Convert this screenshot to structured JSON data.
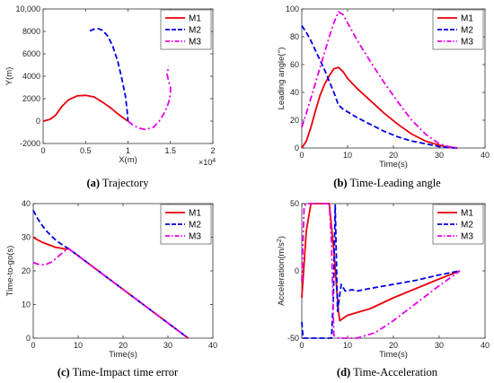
{
  "chart_data": [
    {
      "type": "line",
      "caption_letter": "(a)",
      "caption_text": " Trajectory",
      "xlabel": "X(m)",
      "ylabel": "Y(m)",
      "x_multiplier": "×10",
      "x_multiplier_exp": "4",
      "xlim": [
        0,
        2
      ],
      "ylim": [
        -2000,
        10000
      ],
      "xticks": [
        0,
        0.5,
        1,
        1.5,
        2
      ],
      "xtick_labels": [
        "0",
        "0.5",
        "1",
        "1.5",
        "2"
      ],
      "yticks": [
        -2000,
        0,
        2000,
        4000,
        6000,
        8000,
        10000
      ],
      "ytick_labels": [
        "-2000",
        "0",
        "2000",
        "4000",
        "6000",
        "8000",
        "10,000"
      ],
      "legend": "top-right",
      "series": [
        {
          "name": "M1",
          "color": "#e8000b",
          "dash": "solid",
          "x": [
            0,
            0.08,
            0.15,
            0.22,
            0.3,
            0.4,
            0.5,
            0.6,
            0.7,
            0.8,
            0.88,
            0.95,
            1.0
          ],
          "y": [
            0,
            150,
            550,
            1300,
            1900,
            2250,
            2300,
            2150,
            1700,
            1150,
            650,
            250,
            0
          ]
        },
        {
          "name": "M2",
          "color": "#0000e6",
          "dash": "dashed",
          "x": [
            0.55,
            0.6,
            0.65,
            0.7,
            0.76,
            0.82,
            0.88,
            0.93,
            0.97,
            0.99,
            1.0
          ],
          "y": [
            8050,
            8200,
            8250,
            8100,
            7600,
            6700,
            5300,
            3700,
            2200,
            900,
            0
          ]
        },
        {
          "name": "M3",
          "color": "#e600e6",
          "dash": "dashdot",
          "x": [
            1.0,
            1.05,
            1.12,
            1.2,
            1.3,
            1.38,
            1.44,
            1.48,
            1.5,
            1.5,
            1.48,
            1.46,
            1.48
          ],
          "y": [
            0,
            -300,
            -600,
            -750,
            -550,
            100,
            900,
            1700,
            2400,
            3000,
            3500,
            4200,
            4900
          ]
        }
      ]
    },
    {
      "type": "line",
      "caption_letter": "(b)",
      "caption_text": " Time-Leading angle",
      "xlabel": "Time(s)",
      "ylabel": "Leading angle(°)",
      "xlim": [
        0,
        40
      ],
      "ylim": [
        0,
        100
      ],
      "xticks": [
        0,
        10,
        20,
        30,
        40
      ],
      "xtick_labels": [
        "0",
        "10",
        "20",
        "30",
        "40"
      ],
      "yticks": [
        0,
        20,
        40,
        60,
        80,
        100
      ],
      "ytick_labels": [
        "0",
        "20",
        "40",
        "60",
        "80",
        "100"
      ],
      "legend": "top-right",
      "series": [
        {
          "name": "M1",
          "color": "#e8000b",
          "dash": "solid",
          "x": [
            0,
            1,
            2,
            3,
            4,
            5,
            6,
            7,
            8,
            9,
            10,
            12,
            15,
            18,
            21,
            24,
            27,
            30,
            32,
            34
          ],
          "y": [
            0,
            5,
            15,
            27,
            38,
            46,
            52,
            57,
            58,
            55,
            50,
            43,
            34,
            25,
            17,
            10,
            5,
            2,
            0.5,
            0
          ]
        },
        {
          "name": "M2",
          "color": "#0000e6",
          "dash": "dashed",
          "x": [
            0,
            1,
            2,
            3,
            4,
            5,
            6,
            7,
            8,
            9,
            10,
            12,
            15,
            18,
            21,
            24,
            27,
            30,
            32,
            34
          ],
          "y": [
            88,
            83,
            77,
            70,
            63,
            56,
            48,
            40,
            31,
            28,
            26,
            22,
            17,
            12,
            8,
            5,
            3,
            1,
            0.3,
            0
          ]
        },
        {
          "name": "M3",
          "color": "#e600e6",
          "dash": "dashdot",
          "x": [
            0,
            1,
            2,
            3,
            4,
            5,
            6,
            7,
            8,
            9,
            10,
            12,
            15,
            18,
            21,
            24,
            27,
            30,
            32,
            34
          ],
          "y": [
            15,
            25,
            36,
            47,
            58,
            69,
            80,
            90,
            98,
            96,
            90,
            78,
            62,
            47,
            33,
            20,
            10,
            3,
            1,
            0
          ]
        }
      ]
    },
    {
      "type": "line",
      "caption_letter": "(c)",
      "caption_text": " Time-Impact time error",
      "xlabel": "Time(s)",
      "ylabel": "Time-to-go(s)",
      "xlim": [
        0,
        40
      ],
      "ylim": [
        0,
        40
      ],
      "xticks": [
        0,
        10,
        20,
        30,
        40
      ],
      "xtick_labels": [
        "0",
        "10",
        "20",
        "30",
        "40"
      ],
      "yticks": [
        0,
        10,
        20,
        30,
        40
      ],
      "ytick_labels": [
        "0",
        "10",
        "20",
        "30",
        "40"
      ],
      "legend": "top-right",
      "series": [
        {
          "name": "M1",
          "color": "#e8000b",
          "dash": "solid",
          "x": [
            0,
            1,
            2,
            3,
            4,
            5,
            6,
            7,
            8,
            34.5
          ],
          "y": [
            30,
            29.2,
            28.5,
            28,
            27.5,
            27,
            26.8,
            26.5,
            26.5,
            0
          ]
        },
        {
          "name": "M2",
          "color": "#0000e6",
          "dash": "dashed",
          "x": [
            0,
            1,
            2,
            3,
            4,
            5,
            6,
            7,
            8,
            34.5
          ],
          "y": [
            38,
            35.5,
            33.5,
            31.8,
            30.4,
            29.2,
            28.2,
            27.3,
            26.5,
            0
          ]
        },
        {
          "name": "M3",
          "color": "#e600e6",
          "dash": "dashdot",
          "x": [
            0,
            1,
            2,
            3,
            4,
            5,
            6,
            7,
            8,
            34.5
          ],
          "y": [
            22.5,
            22,
            21.8,
            22,
            22.6,
            23.6,
            24.8,
            25.9,
            26.5,
            0
          ]
        }
      ]
    },
    {
      "type": "line",
      "caption_letter": "(d)",
      "caption_text": " Time-Acceleration",
      "xlabel": "Time(s)",
      "ylabel": "Acceleration(m/s",
      "ylabel_sup": "2",
      "ylabel_end": ")",
      "xlim": [
        0,
        40
      ],
      "ylim": [
        -50,
        50
      ],
      "xticks": [
        0,
        10,
        20,
        30,
        40
      ],
      "xtick_labels": [
        "0",
        "10",
        "20",
        "30",
        "40"
      ],
      "yticks": [
        -50,
        0,
        50
      ],
      "ytick_labels": [
        "-50",
        "0",
        "50"
      ],
      "legend": "top-right",
      "series": [
        {
          "name": "M1",
          "color": "#e8000b",
          "dash": "solid",
          "x": [
            0,
            1,
            2,
            3,
            6,
            7,
            8,
            8.3,
            10,
            12,
            15,
            20,
            25,
            30,
            34.5
          ],
          "y": [
            -20,
            30,
            50,
            50,
            50,
            15,
            -30,
            -37,
            -33,
            -31,
            -28,
            -20,
            -13,
            -6,
            0
          ]
        },
        {
          "name": "M2",
          "color": "#0000e6",
          "dash": "dashed",
          "x": [
            0,
            0.3,
            0.6,
            6.5,
            6.9,
            7.3,
            7.8,
            8.2,
            8.6,
            9.5,
            11,
            12,
            15,
            20,
            25,
            30,
            34.5
          ],
          "y": [
            -38,
            -50,
            -50,
            -50,
            -20,
            49,
            -30,
            -20,
            -10,
            -15,
            -14,
            -15,
            -13,
            -10,
            -7,
            -3,
            0
          ]
        },
        {
          "name": "M3",
          "color": "#e600e6",
          "dash": "dashdot",
          "x": [
            0,
            0.5,
            1,
            6,
            6.5,
            7,
            8,
            12,
            16,
            20,
            25,
            30,
            34.5
          ],
          "y": [
            -8,
            48,
            50,
            50,
            20,
            -48,
            -50,
            -50,
            -46,
            -37,
            -24,
            -11,
            0
          ]
        }
      ]
    }
  ]
}
